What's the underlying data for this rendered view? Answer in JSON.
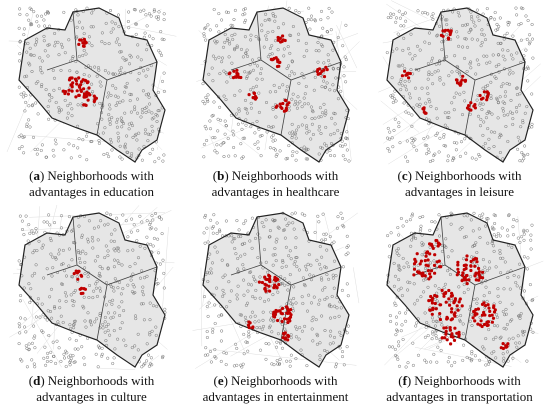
{
  "bracket_open": "(",
  "bracket_close": ")",
  "panels": [
    {
      "label": "a",
      "line1": "Neighborhoods with",
      "line2": "advantages in education"
    },
    {
      "label": "b",
      "line1": "Neighborhoods with",
      "line2": "advantages in healthcare"
    },
    {
      "label": "c",
      "line1": "Neighborhoods with",
      "line2": "advantages in leisure"
    },
    {
      "label": "d",
      "line1": "Neighborhoods with",
      "line2": "advantages in culture"
    },
    {
      "label": "e",
      "line1": "Neighborhoods with",
      "line2": "advantages in entertainment"
    },
    {
      "label": "f",
      "line1": "Neighborhoods with",
      "line2": "advantages in transportation"
    }
  ]
}
